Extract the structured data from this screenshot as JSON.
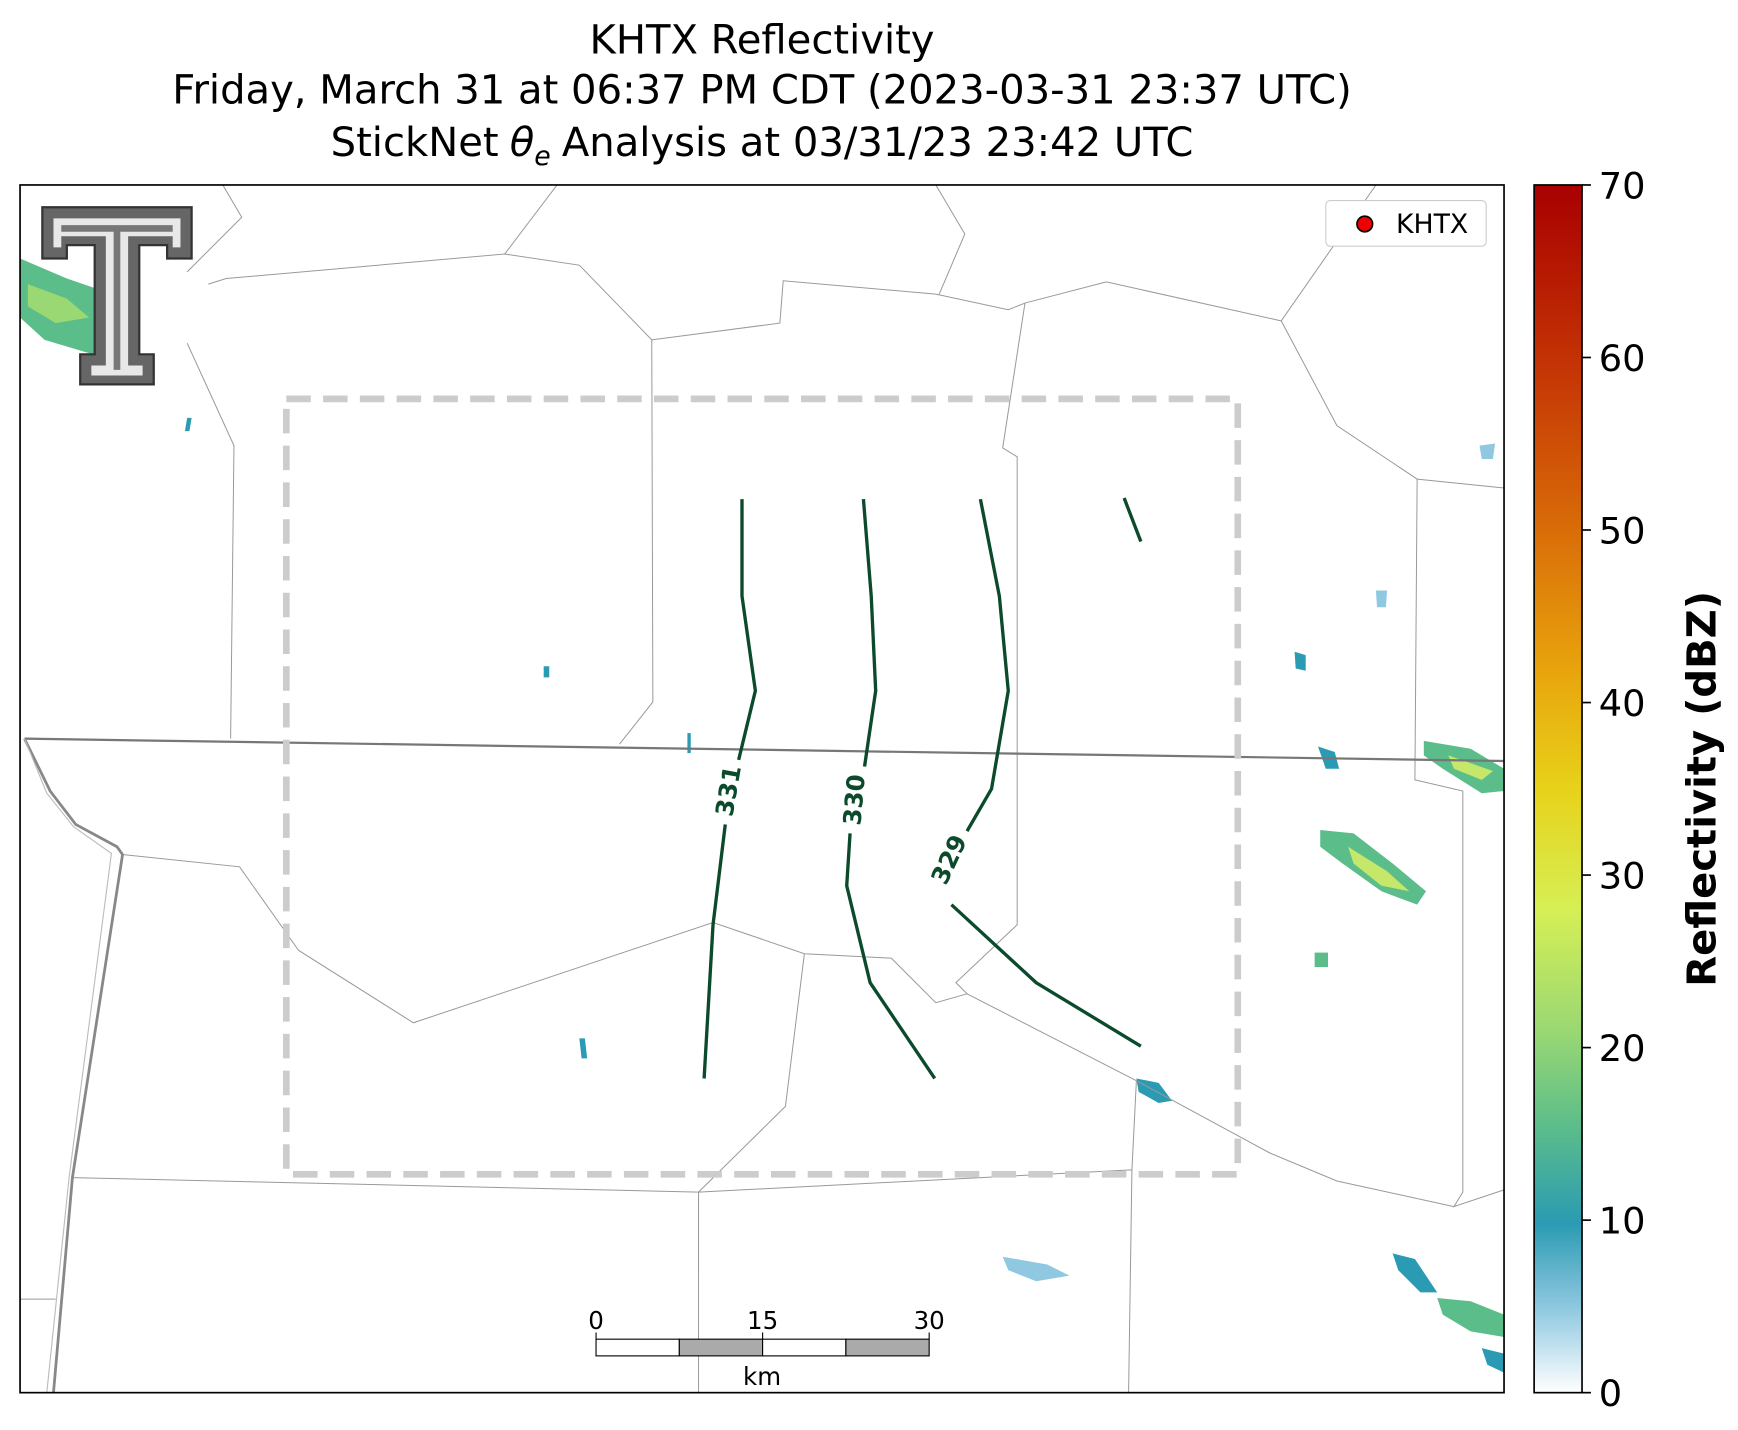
{
  "title": {
    "line1": "KHTX Reflectivity",
    "line2": "Friday, March 31 at 06:37 PM CDT (2023-03-31 23:37 UTC)",
    "line3": {
      "prefix": "StickNet",
      "symbol": "θ",
      "subscript": "e",
      "suffix": "Analysis at 03/31/23 23:42 UTC"
    }
  },
  "legend": {
    "label": "KHTX"
  },
  "contours": [
    {
      "level": 331
    },
    {
      "level": 330
    },
    {
      "level": 329
    }
  ],
  "scale_bar": {
    "ticks": [
      0,
      15,
      30
    ],
    "unit": "km"
  },
  "colorbar": {
    "label": "Reflectivity (dBZ)",
    "lim": [
      0,
      70
    ],
    "ticks": [
      0,
      10,
      20,
      30,
      40,
      50,
      60,
      70
    ]
  }
}
